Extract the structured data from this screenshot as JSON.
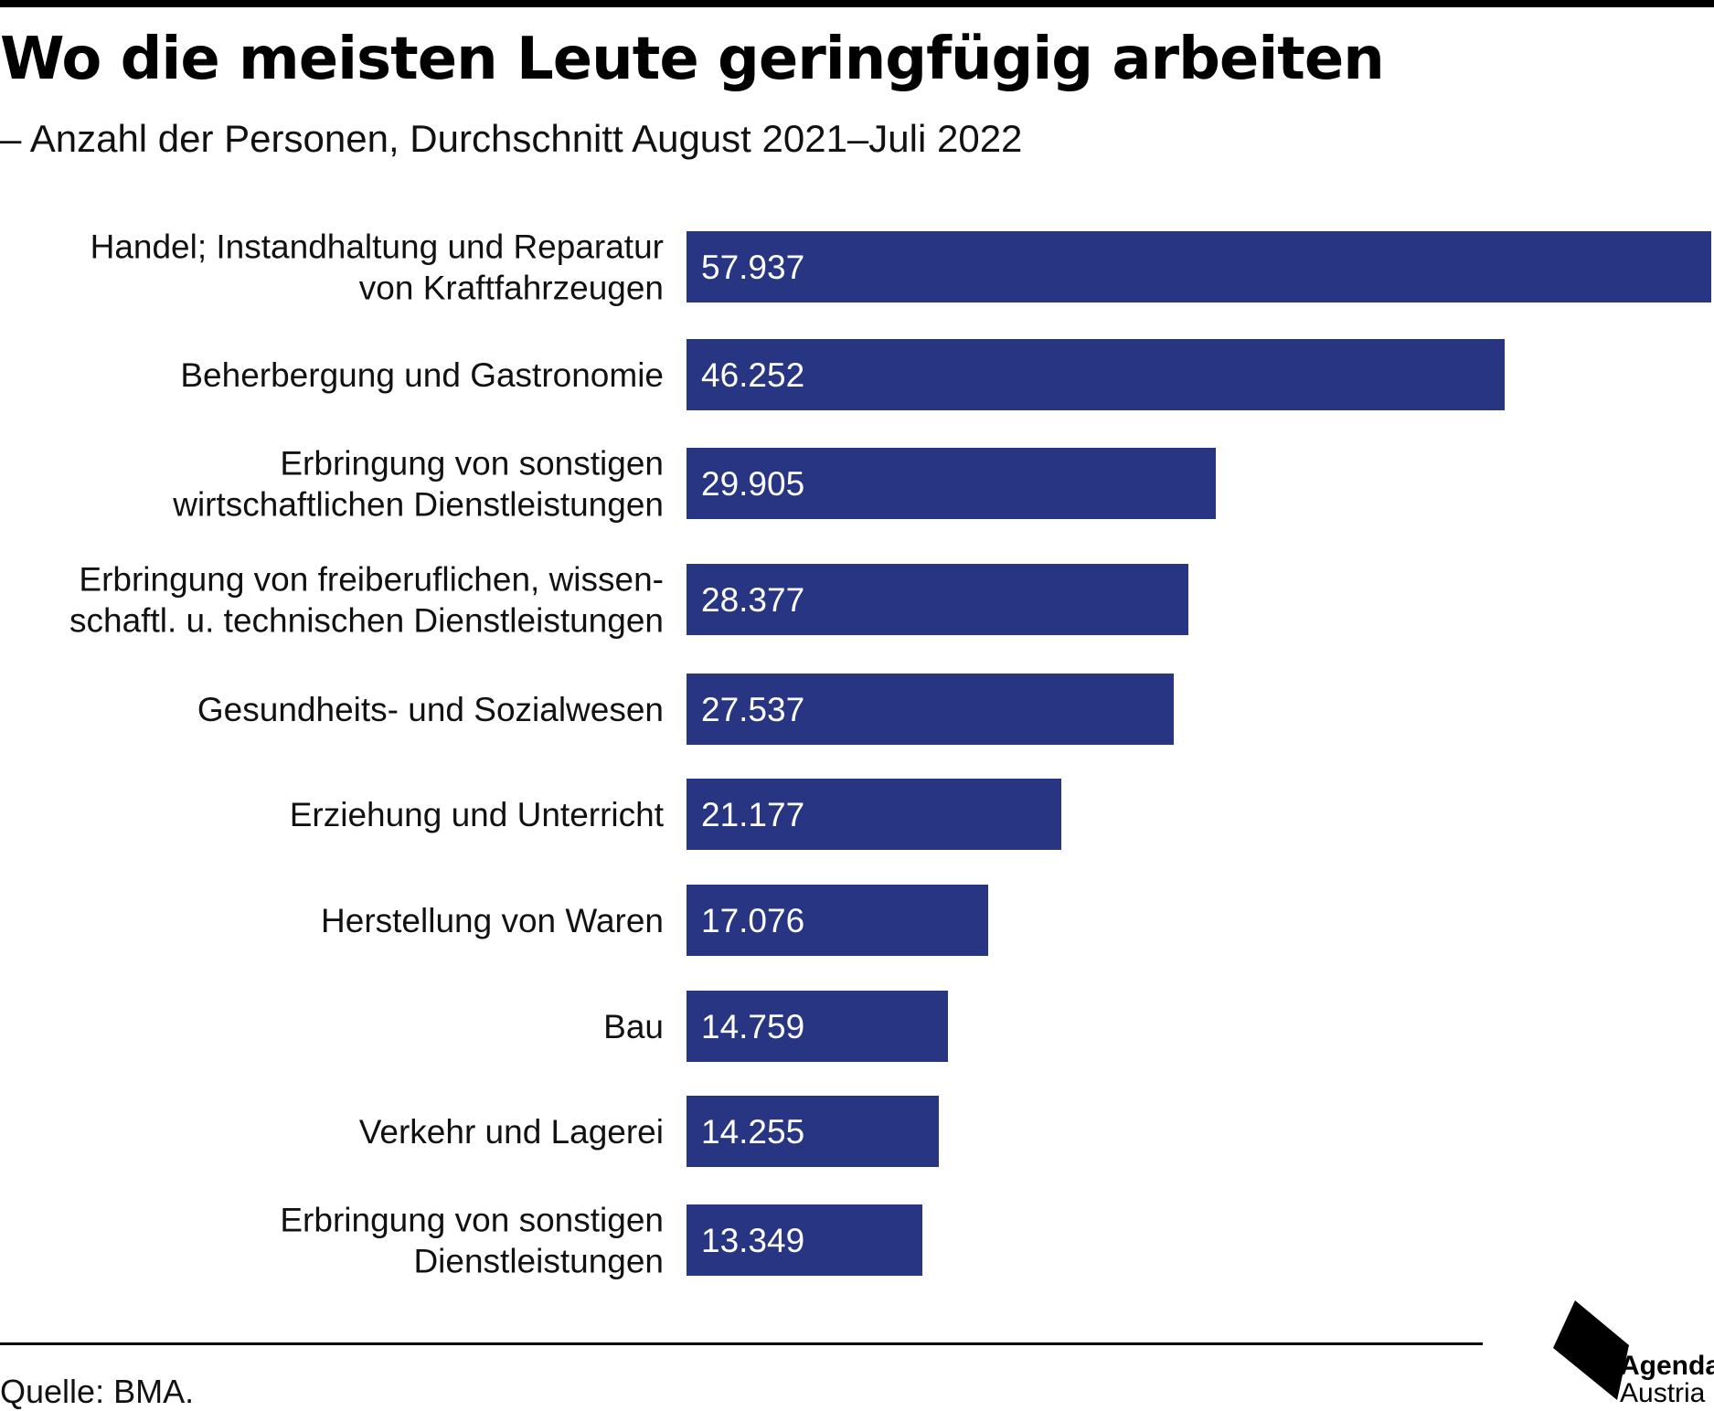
{
  "header": {
    "title": "Wo die meisten Leute geringfügig arbeiten",
    "subtitle": "– Anzahl der Personen, Durchschnitt August 2021–Juli 2022"
  },
  "footer": {
    "source": "Quelle: BMA.",
    "logo_line1": "Agenda",
    "logo_line2": "Austria"
  },
  "colors": {
    "bar": "#283583",
    "background": "#ffffff",
    "text": "#111111"
  },
  "chart_data": {
    "type": "bar",
    "orientation": "horizontal",
    "title": "Wo die meisten Leute geringfügig arbeiten",
    "subtitle": "– Anzahl der Personen, Durchschnitt August 2021–Juli 2022",
    "categories": [
      [
        "Handel; Instandhaltung und Reparatur",
        "von Kraftfahrzeugen"
      ],
      [
        "Beherbergung und Gastronomie"
      ],
      [
        "Erbringung von sonstigen",
        "wirtschaftlichen Dienstleistungen"
      ],
      [
        "Erbringung von freiberuflichen, wissen-",
        "schaftl. u. technischen Dienstleistungen"
      ],
      [
        "Gesundheits- und Sozialwesen"
      ],
      [
        "Erziehung und Unterricht"
      ],
      [
        "Herstellung von Waren"
      ],
      [
        "Bau"
      ],
      [
        "Verkehr und Lagerei"
      ],
      [
        "Erbringung von sonstigen",
        "Dienstleistungen"
      ]
    ],
    "values": [
      57937,
      46252,
      29905,
      28377,
      27537,
      21177,
      17076,
      14759,
      14255,
      13349
    ],
    "value_labels": [
      "57.937",
      "46.252",
      "29.905",
      "28.377",
      "27.537",
      "21.177",
      "17.076",
      "14.759",
      "14.255",
      "13.349"
    ],
    "xlim": [
      0,
      57937
    ],
    "grid": false,
    "legend": "none"
  }
}
